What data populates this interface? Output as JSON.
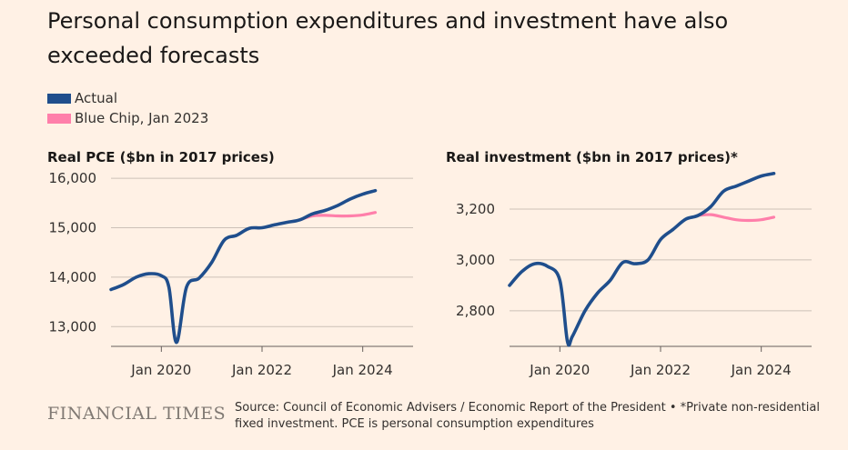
{
  "title": "Personal consumption expenditures and investment have also exceeded forecasts",
  "legend": [
    {
      "label": "Actual",
      "color": "#1f4e8c"
    },
    {
      "label": "Blue Chip, Jan 2023",
      "color": "#ff7faa"
    }
  ],
  "colors": {
    "actual": "#1f4e8c",
    "forecast": "#ff7faa",
    "grid": "#ccc1b7",
    "background": "#fff1e5"
  },
  "chart_data": [
    {
      "type": "line",
      "title": "Real PCE ($bn in 2017 prices)",
      "x_ticks": [
        {
          "x": 2020.0,
          "label": "Jan 2020"
        },
        {
          "x": 2022.0,
          "label": "Jan 2022"
        },
        {
          "x": 2024.0,
          "label": "Jan 2024"
        }
      ],
      "y_ticks": [
        {
          "y": 13000,
          "label": "13,000"
        },
        {
          "y": 14000,
          "label": "14,000"
        },
        {
          "y": 15000,
          "label": "15,000"
        },
        {
          "y": 16000,
          "label": "16,000"
        }
      ],
      "xlim": [
        2019.0,
        2025.0
      ],
      "ylim": [
        12600,
        16150
      ],
      "grid": true,
      "series": [
        {
          "name": "Actual",
          "color": "#1f4e8c",
          "x": [
            2019.0,
            2019.25,
            2019.5,
            2019.75,
            2020.0,
            2020.15,
            2020.3,
            2020.5,
            2020.75,
            2021.0,
            2021.25,
            2021.5,
            2021.75,
            2022.0,
            2022.25,
            2022.5,
            2022.75,
            2023.0,
            2023.25,
            2023.5,
            2023.75,
            2024.0,
            2024.25
          ],
          "y": [
            13750,
            13850,
            14000,
            14070,
            14030,
            13800,
            12680,
            13800,
            13980,
            14300,
            14750,
            14850,
            14990,
            15000,
            15060,
            15110,
            15160,
            15280,
            15350,
            15450,
            15580,
            15680,
            15750
          ]
        },
        {
          "name": "Blue Chip, Jan 2023",
          "color": "#ff7faa",
          "x": [
            2022.75,
            2023.0,
            2023.25,
            2023.5,
            2023.75,
            2024.0,
            2024.25
          ],
          "y": [
            15160,
            15240,
            15250,
            15240,
            15240,
            15260,
            15310
          ]
        }
      ]
    },
    {
      "type": "line",
      "title": "Real investment ($bn in 2017 prices)*",
      "x_ticks": [
        {
          "x": 2020.0,
          "label": "Jan 2020"
        },
        {
          "x": 2022.0,
          "label": "Jan 2022"
        },
        {
          "x": 2024.0,
          "label": "Jan 2024"
        }
      ],
      "y_ticks": [
        {
          "y": 2800,
          "label": "2,800"
        },
        {
          "y": 3000,
          "label": "3,000"
        },
        {
          "y": 3200,
          "label": "3,200"
        }
      ],
      "xlim": [
        2019.0,
        2025.0
      ],
      "ylim": [
        2660,
        3350
      ],
      "grid": true,
      "series": [
        {
          "name": "Actual",
          "color": "#1f4e8c",
          "x": [
            2019.0,
            2019.25,
            2019.5,
            2019.75,
            2020.0,
            2020.15,
            2020.25,
            2020.5,
            2020.75,
            2021.0,
            2021.25,
            2021.5,
            2021.75,
            2022.0,
            2022.25,
            2022.5,
            2022.75,
            2023.0,
            2023.25,
            2023.5,
            2023.75,
            2024.0,
            2024.25
          ],
          "y": [
            2900,
            2955,
            2985,
            2975,
            2920,
            2680,
            2700,
            2800,
            2870,
            2920,
            2990,
            2985,
            3000,
            3080,
            3120,
            3160,
            3175,
            3210,
            3270,
            3290,
            3310,
            3330,
            3340
          ]
        },
        {
          "name": "Blue Chip, Jan 2023",
          "color": "#ff7faa",
          "x": [
            2022.75,
            2023.0,
            2023.25,
            2023.5,
            2023.75,
            2024.0,
            2024.25
          ],
          "y": [
            3175,
            3178,
            3168,
            3158,
            3155,
            3158,
            3168
          ]
        }
      ]
    }
  ],
  "footer": {
    "logo": "FINANCIAL TIMES",
    "source": "Source: Council of Economic Advisers / Economic Report of the President • *Private non-residential fixed investment. PCE is personal consumption expenditures"
  }
}
